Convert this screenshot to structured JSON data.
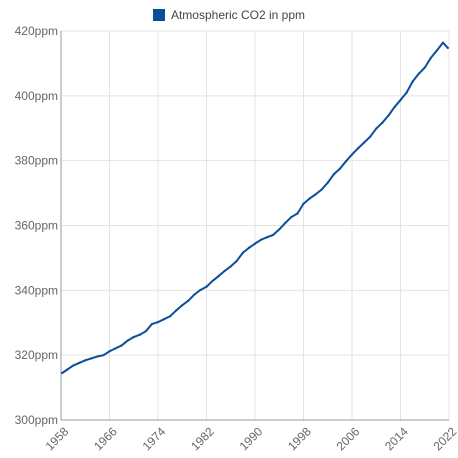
{
  "chart_data": {
    "type": "line",
    "title": "",
    "xlabel": "",
    "ylabel": "",
    "legend_position": "top-center",
    "grid": true,
    "xlim": [
      1958,
      2022
    ],
    "ylim": [
      300,
      420
    ],
    "x_ticks": [
      1958,
      1966,
      1974,
      1982,
      1990,
      1998,
      2006,
      2014,
      2022
    ],
    "x_tick_labels": [
      "1958",
      "1966",
      "1974",
      "1982",
      "1990",
      "1998",
      "2006",
      "2014",
      "2022"
    ],
    "y_ticks": [
      300,
      320,
      340,
      360,
      380,
      400,
      420
    ],
    "y_tick_labels": [
      "300ppm",
      "320ppm",
      "340ppm",
      "360ppm",
      "380ppm",
      "400ppm",
      "420ppm"
    ],
    "series": [
      {
        "name": "Atmospheric CO2 in ppm",
        "color": "#0b4f9c",
        "x": [
          1958.2,
          1959,
          1960,
          1961,
          1962,
          1963,
          1964,
          1965,
          1966,
          1967,
          1968,
          1969,
          1970,
          1971,
          1972,
          1973,
          1974,
          1975,
          1976,
          1977,
          1978,
          1979,
          1980,
          1981,
          1982,
          1983,
          1984,
          1985,
          1986,
          1987,
          1988,
          1989,
          1990,
          1991,
          1992,
          1993,
          1994,
          1995,
          1996,
          1997,
          1998,
          1999,
          2000,
          2001,
          2002,
          2003,
          2004,
          2005,
          2006,
          2007,
          2008,
          2009,
          2010,
          2011,
          2012,
          2013,
          2014,
          2015,
          2016,
          2017,
          2018,
          2019,
          2020,
          2021,
          2021.8
        ],
        "y": [
          314.5,
          315.5,
          316.8,
          317.6,
          318.4,
          319.0,
          319.6,
          320.0,
          321.2,
          322.1,
          323.0,
          324.5,
          325.6,
          326.3,
          327.4,
          329.6,
          330.2,
          331.1,
          332.0,
          333.8,
          335.4,
          336.8,
          338.7,
          340.1,
          341.1,
          342.9,
          344.4,
          346.0,
          347.4,
          349.1,
          351.6,
          353.1,
          354.4,
          355.6,
          356.4,
          357.1,
          358.8,
          360.8,
          362.6,
          363.7,
          366.7,
          368.3,
          369.6,
          371.1,
          373.2,
          375.8,
          377.5,
          379.8,
          381.9,
          383.8,
          385.6,
          387.4,
          389.9,
          391.7,
          393.9,
          396.5,
          398.7,
          401.0,
          404.4,
          406.8,
          408.7,
          411.7,
          414.0,
          416.4,
          414.8
        ]
      }
    ]
  },
  "legend": {
    "label": "Atmospheric CO2 in ppm",
    "color": "#0b4f9c"
  }
}
